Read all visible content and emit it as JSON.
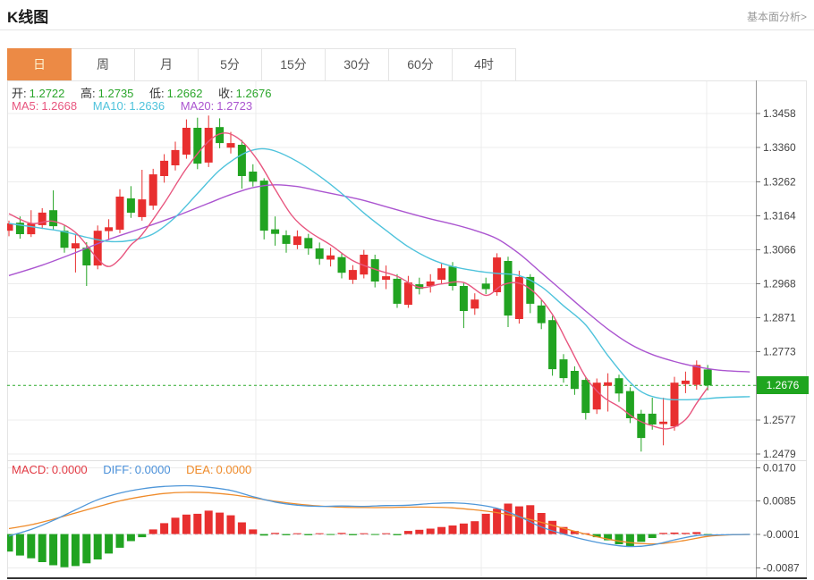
{
  "header": {
    "title": "K线图",
    "link": "基本面分析>"
  },
  "tabs": {
    "items": [
      "日",
      "周",
      "月",
      "5分",
      "15分",
      "30分",
      "60分",
      "4时"
    ],
    "selected_index": 0
  },
  "legend": {
    "ohlc": [
      {
        "label": "开:",
        "value": "1.2722"
      },
      {
        "label": "高:",
        "value": "1.2735"
      },
      {
        "label": "低:",
        "value": "1.2662"
      },
      {
        "label": "收:",
        "value": "1.2676"
      }
    ],
    "ma": [
      {
        "label": "MA5:",
        "value": "1.2668"
      },
      {
        "label": "MA10:",
        "value": "1.2636"
      },
      {
        "label": "MA20:",
        "value": "1.2723"
      }
    ],
    "macd": [
      {
        "label": "MACD:",
        "value": "0.0000"
      },
      {
        "label": "DIFF:",
        "value": "0.0000"
      },
      {
        "label": "DEA:",
        "value": "0.0000"
      }
    ]
  },
  "colors": {
    "up": "#e82f2f",
    "down": "#21a321",
    "ma5": "#e8567f",
    "ma10": "#4fc3dc",
    "ma20": "#ab55d0",
    "diff": "#4f97d9",
    "dea": "#ef8b2a",
    "price_line": "#2daa2d",
    "badge_bg": "#1fa51f",
    "tab_active_bg": "#ec8a45",
    "tab_active_text": "#fdf3d1",
    "grid": "#ececec",
    "axis_line": "#999999",
    "label_text": "#444444",
    "ohlc_value": "#2aa52a"
  },
  "chart_data": {
    "type": "candlestick",
    "title": "K线图",
    "current_price": "1.2676",
    "main": {
      "y_ticks": [
        "1.3458",
        "1.3360",
        "1.3262",
        "1.3164",
        "1.3066",
        "1.2968",
        "1.2871",
        "1.2773",
        "1.2676",
        "1.2577",
        "1.2479"
      ],
      "current_tick_index": 8,
      "candles_ohlc": [
        [
          1.3121,
          1.315,
          1.3105,
          1.3142
        ],
        [
          1.3144,
          1.3162,
          1.3098,
          1.3111
        ],
        [
          1.3111,
          1.318,
          1.3103,
          1.3142
        ],
        [
          1.3137,
          1.3186,
          1.3126,
          1.3173
        ],
        [
          1.318,
          1.3237,
          1.3125,
          1.3134
        ],
        [
          1.3121,
          1.3136,
          1.3058,
          1.3072
        ],
        [
          1.307,
          1.3112,
          1.3001,
          1.3085
        ],
        [
          1.3072,
          1.3088,
          1.2962,
          1.3021
        ],
        [
          1.3021,
          1.3136,
          1.301,
          1.3121
        ],
        [
          1.312,
          1.3154,
          1.3094,
          1.3131
        ],
        [
          1.3124,
          1.324,
          1.3114,
          1.3219
        ],
        [
          1.3214,
          1.3249,
          1.3158,
          1.3173
        ],
        [
          1.316,
          1.3296,
          1.315,
          1.3211
        ],
        [
          1.3193,
          1.3299,
          1.3181,
          1.3283
        ],
        [
          1.3278,
          1.3341,
          1.3259,
          1.3322
        ],
        [
          1.3309,
          1.3377,
          1.3294,
          1.3353
        ],
        [
          1.334,
          1.3441,
          1.3328,
          1.3417
        ],
        [
          1.3417,
          1.3446,
          1.3298,
          1.3314
        ],
        [
          1.3317,
          1.3452,
          1.3304,
          1.3417
        ],
        [
          1.3419,
          1.3444,
          1.3358,
          1.3373
        ],
        [
          1.336,
          1.3405,
          1.3343,
          1.3373
        ],
        [
          1.3368,
          1.3382,
          1.3242,
          1.3278
        ],
        [
          1.3291,
          1.3312,
          1.3248,
          1.3262
        ],
        [
          1.3265,
          1.3272,
          1.3096,
          1.3121
        ],
        [
          1.3125,
          1.3162,
          1.3078,
          1.3112
        ],
        [
          1.3108,
          1.3122,
          1.3058,
          1.3083
        ],
        [
          1.308,
          1.3122,
          1.3068,
          1.3105
        ],
        [
          1.31,
          1.3112,
          1.3052,
          1.307
        ],
        [
          1.307,
          1.3087,
          1.3023,
          1.304
        ],
        [
          1.3038,
          1.3072,
          1.3018,
          1.305
        ],
        [
          1.3045,
          1.3057,
          1.2984,
          1.3
        ],
        [
          1.298,
          1.3022,
          1.2968,
          1.3008
        ],
        [
          1.2995,
          1.3066,
          1.2984,
          1.3052
        ],
        [
          1.3039,
          1.3052,
          1.2958,
          1.2975
        ],
        [
          1.298,
          1.3021,
          1.2953,
          1.299
        ],
        [
          1.2983,
          1.2996,
          1.2899,
          1.2911
        ],
        [
          1.2908,
          1.2991,
          1.2899,
          1.2972
        ],
        [
          1.2967,
          1.2986,
          1.2938,
          1.2954
        ],
        [
          1.2962,
          1.2996,
          1.2943,
          1.2975
        ],
        [
          1.298,
          1.3026,
          1.2969,
          1.3013
        ],
        [
          1.3018,
          1.3031,
          1.2949,
          1.2962
        ],
        [
          1.2962,
          1.2971,
          1.2841,
          1.289
        ],
        [
          1.2897,
          1.2941,
          1.2879,
          1.2923
        ],
        [
          1.2969,
          1.2986,
          1.2939,
          1.2953
        ],
        [
          1.2944,
          1.3056,
          1.2934,
          1.3044
        ],
        [
          1.3034,
          1.3046,
          1.2844,
          1.2877
        ],
        [
          1.2867,
          1.3006,
          1.2854,
          1.2988
        ],
        [
          1.2988,
          1.2996,
          1.2884,
          1.2911
        ],
        [
          1.2906,
          1.2921,
          1.2838,
          1.2855
        ],
        [
          1.2864,
          1.2876,
          1.2704,
          1.2723
        ],
        [
          1.2751,
          1.2766,
          1.2684,
          1.2697
        ],
        [
          1.2718,
          1.2731,
          1.2649,
          1.2666
        ],
        [
          1.2692,
          1.2701,
          1.2578,
          1.2597
        ],
        [
          1.2607,
          1.2696,
          1.2594,
          1.2684
        ],
        [
          1.2675,
          1.2711,
          1.2601,
          1.2685
        ],
        [
          1.2697,
          1.2707,
          1.2629,
          1.2653
        ],
        [
          1.266,
          1.2671,
          1.2568,
          1.2582
        ],
        [
          1.2595,
          1.2606,
          1.2486,
          1.2525
        ],
        [
          1.2595,
          1.2641,
          1.2549,
          1.2564
        ],
        [
          1.2565,
          1.2641,
          1.2504,
          1.2572
        ],
        [
          1.2558,
          1.2701,
          1.2546,
          1.2684
        ],
        [
          1.268,
          1.2716,
          1.2654,
          1.269
        ],
        [
          1.2678,
          1.2748,
          1.2664,
          1.2735
        ],
        [
          1.2722,
          1.2735,
          1.2662,
          1.2676
        ]
      ],
      "ma5_points": [
        [
          1,
          1.317
        ],
        [
          3,
          1.3142
        ],
        [
          5,
          1.3148
        ],
        [
          7,
          1.3116
        ],
        [
          9,
          1.304
        ],
        [
          10,
          1.3018
        ],
        [
          11,
          1.304
        ],
        [
          12,
          1.308
        ],
        [
          13,
          1.311
        ],
        [
          15,
          1.32
        ],
        [
          17,
          1.33
        ],
        [
          19,
          1.3378
        ],
        [
          20.5,
          1.3402
        ],
        [
          22,
          1.3378
        ],
        [
          23.5,
          1.332
        ],
        [
          25,
          1.324
        ],
        [
          26.5,
          1.3165
        ],
        [
          28,
          1.312
        ],
        [
          30,
          1.308
        ],
        [
          32,
          1.3035
        ],
        [
          34,
          1.301
        ],
        [
          36,
          1.299
        ],
        [
          38,
          1.2958
        ],
        [
          40,
          1.2968
        ],
        [
          42,
          1.2972
        ],
        [
          44,
          1.2935
        ],
        [
          45.5,
          1.2965
        ],
        [
          47,
          1.297
        ],
        [
          48.5,
          1.294
        ],
        [
          50,
          1.288
        ],
        [
          51.5,
          1.279
        ],
        [
          53,
          1.27
        ],
        [
          54.5,
          1.2645
        ],
        [
          56,
          1.2615
        ],
        [
          57.5,
          1.258
        ],
        [
          59,
          1.256
        ],
        [
          60.5,
          1.2552
        ],
        [
          62,
          1.2578
        ],
        [
          63,
          1.2625
        ],
        [
          64,
          1.267
        ]
      ],
      "ma10_points": [
        [
          1,
          1.3142
        ],
        [
          4,
          1.3128
        ],
        [
          6,
          1.3118
        ],
        [
          8,
          1.3102
        ],
        [
          10,
          1.309
        ],
        [
          12,
          1.3093
        ],
        [
          14,
          1.3112
        ],
        [
          16,
          1.316
        ],
        [
          18,
          1.3228
        ],
        [
          20,
          1.3295
        ],
        [
          22,
          1.334
        ],
        [
          23.5,
          1.3356
        ],
        [
          25,
          1.335
        ],
        [
          27,
          1.332
        ],
        [
          29,
          1.3278
        ],
        [
          31,
          1.3228
        ],
        [
          33,
          1.3172
        ],
        [
          35,
          1.3122
        ],
        [
          37,
          1.3075
        ],
        [
          39,
          1.304
        ],
        [
          41,
          1.3018
        ],
        [
          43,
          1.3006
        ],
        [
          45,
          1.2998
        ],
        [
          47,
          1.2992
        ],
        [
          49,
          1.296
        ],
        [
          51,
          1.2905
        ],
        [
          53,
          1.285
        ],
        [
          55,
          1.2762
        ],
        [
          57,
          1.2685
        ],
        [
          58.5,
          1.265
        ],
        [
          60.5,
          1.2636
        ],
        [
          63,
          1.2636
        ],
        [
          65,
          1.2641
        ],
        [
          67.8,
          1.2644
        ]
      ],
      "ma20_points": [
        [
          1,
          1.2992
        ],
        [
          4,
          1.3022
        ],
        [
          7,
          1.3058
        ],
        [
          10,
          1.3096
        ],
        [
          13,
          1.3128
        ],
        [
          16,
          1.3162
        ],
        [
          19,
          1.32
        ],
        [
          21,
          1.3225
        ],
        [
          23,
          1.3245
        ],
        [
          25,
          1.3253
        ],
        [
          27,
          1.3248
        ],
        [
          29,
          1.3235
        ],
        [
          31,
          1.3222
        ],
        [
          33,
          1.3208
        ],
        [
          35,
          1.319
        ],
        [
          37,
          1.3172
        ],
        [
          39,
          1.3155
        ],
        [
          41,
          1.314
        ],
        [
          43,
          1.3122
        ],
        [
          45,
          1.3098
        ],
        [
          47,
          1.3055
        ],
        [
          49,
          1.3
        ],
        [
          51,
          1.2945
        ],
        [
          53,
          1.289
        ],
        [
          55,
          1.2838
        ],
        [
          57,
          1.2795
        ],
        [
          59,
          1.2765
        ],
        [
          61,
          1.2745
        ],
        [
          63,
          1.273
        ],
        [
          65,
          1.272
        ],
        [
          67.8,
          1.2715
        ]
      ]
    },
    "macd": {
      "y_ticks": [
        "0.0170",
        "0.0085",
        "-0.0001",
        "-0.0087"
      ],
      "hist": [
        -0.0045,
        -0.0055,
        -0.0062,
        -0.0072,
        -0.008,
        -0.0085,
        -0.0082,
        -0.0075,
        -0.0065,
        -0.005,
        -0.0035,
        -0.0018,
        -0.0008,
        0.0012,
        0.0028,
        0.0042,
        0.005,
        0.0052,
        0.006,
        0.0055,
        0.0048,
        0.003,
        0.0012,
        -0.0004,
        0.0003,
        -0.0003,
        0.0002,
        -0.0003,
        0.0002,
        -0.0002,
        0.0003,
        -0.0003,
        0.0002,
        -0.0002,
        0.0002,
        -0.0003,
        0.0008,
        0.0011,
        0.0014,
        0.0018,
        0.0022,
        0.0027,
        0.0033,
        0.0052,
        0.0065,
        0.0078,
        0.0071,
        0.0074,
        0.0054,
        0.0034,
        0.0018,
        0.0008,
        0.0002,
        -0.0008,
        -0.0016,
        -0.0026,
        -0.0031,
        -0.002,
        -0.001,
        0.0003,
        0.0004,
        0.0003,
        0.0005,
        -0.0003
      ],
      "diff_points": [
        [
          1,
          -0.0005
        ],
        [
          3,
          0.0012
        ],
        [
          5,
          0.0035
        ],
        [
          7,
          0.0062
        ],
        [
          9,
          0.0088
        ],
        [
          11,
          0.0105
        ],
        [
          13,
          0.0116
        ],
        [
          15,
          0.0122
        ],
        [
          17,
          0.0124
        ],
        [
          19,
          0.012
        ],
        [
          21,
          0.0112
        ],
        [
          23,
          0.0096
        ],
        [
          25,
          0.0082
        ],
        [
          27,
          0.0074
        ],
        [
          29,
          0.0071
        ],
        [
          31,
          0.0072
        ],
        [
          33,
          0.0071
        ],
        [
          35,
          0.0073
        ],
        [
          37,
          0.0074
        ],
        [
          39,
          0.0078
        ],
        [
          41,
          0.008
        ],
        [
          43,
          0.0076
        ],
        [
          45,
          0.0066
        ],
        [
          47,
          0.0045
        ],
        [
          49,
          0.0018
        ],
        [
          51,
          0.0
        ],
        [
          53,
          -0.0015
        ],
        [
          55,
          -0.0026
        ],
        [
          57,
          -0.0032
        ],
        [
          59,
          -0.0028
        ],
        [
          61,
          -0.0015
        ],
        [
          63,
          -0.0004
        ],
        [
          65,
          -0.0002
        ],
        [
          67.8,
          -0.0001
        ]
      ],
      "dea_points": [
        [
          1,
          0.0014
        ],
        [
          3,
          0.0024
        ],
        [
          5,
          0.0038
        ],
        [
          7,
          0.0054
        ],
        [
          9,
          0.007
        ],
        [
          11,
          0.0085
        ],
        [
          13,
          0.0096
        ],
        [
          15,
          0.0104
        ],
        [
          17,
          0.0107
        ],
        [
          19,
          0.0106
        ],
        [
          21,
          0.0101
        ],
        [
          23,
          0.0093
        ],
        [
          25,
          0.0084
        ],
        [
          27,
          0.0077
        ],
        [
          29,
          0.0072
        ],
        [
          31,
          0.0069
        ],
        [
          33,
          0.0068
        ],
        [
          35,
          0.0068
        ],
        [
          37,
          0.0069
        ],
        [
          39,
          0.0069
        ],
        [
          41,
          0.0067
        ],
        [
          43,
          0.0062
        ],
        [
          45,
          0.0055
        ],
        [
          47,
          0.0044
        ],
        [
          49,
          0.003
        ],
        [
          51,
          0.0015
        ],
        [
          53,
          0.0
        ],
        [
          55,
          -0.0013
        ],
        [
          57,
          -0.0022
        ],
        [
          58.5,
          -0.0025
        ],
        [
          60,
          -0.0024
        ],
        [
          62,
          -0.0016
        ],
        [
          64,
          -0.0006
        ],
        [
          66,
          -0.0002
        ],
        [
          67.8,
          -0.0001
        ]
      ]
    }
  }
}
